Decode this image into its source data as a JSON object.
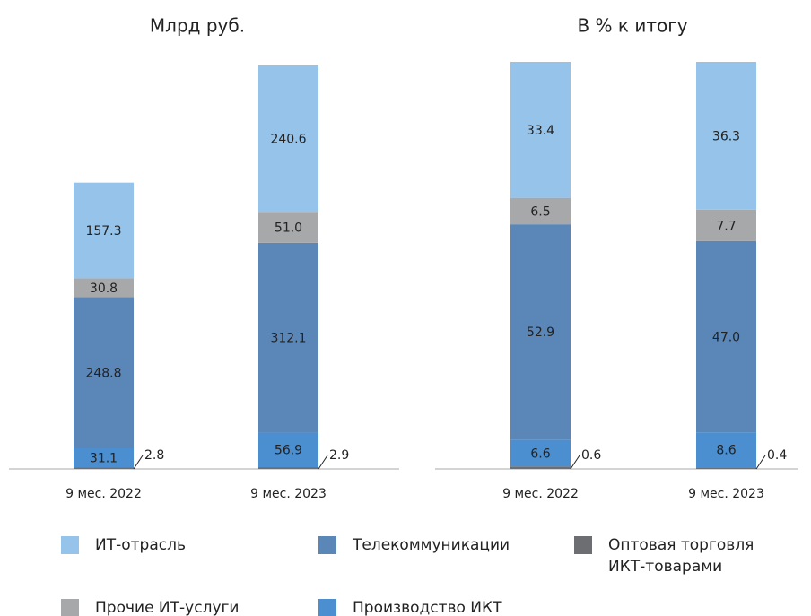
{
  "chart_data": [
    {
      "type": "stacked-bar",
      "title": "Млрд руб.",
      "categories": [
        "9 мес. 2022",
        "9 мес. 2023"
      ],
      "series": [
        {
          "name": "Оптовая торговля ИКТ-товарами",
          "color": "#6d6e71",
          "values": [
            2.8,
            2.9
          ]
        },
        {
          "name": "Производство ИКТ",
          "color": "#4b8fd0",
          "values": [
            31.1,
            56.9
          ]
        },
        {
          "name": "Телекоммуникации",
          "color": "#5b87b8",
          "values": [
            248.8,
            312.1
          ]
        },
        {
          "name": "Прочие ИТ-услуги",
          "color": "#a7a8aa",
          "values": [
            30.8,
            51
          ],
          "value_labels": [
            "30.8",
            "51.0"
          ]
        },
        {
          "name": "ИТ-отрасль",
          "color": "#95c3ea",
          "values": [
            157.3,
            240.6
          ]
        }
      ]
    },
    {
      "type": "stacked-bar",
      "title": "В % к итогу",
      "categories": [
        "9 мес. 2022",
        "9 мес. 2023"
      ],
      "series": [
        {
          "color": "#6d6e71",
          "values": [
            0.6,
            0.4
          ]
        },
        {
          "color": "#4b8fd0",
          "values": [
            6.6,
            8.6
          ]
        },
        {
          "color": "#5b87b8",
          "values": [
            52.9,
            47
          ],
          "value_labels": [
            "52.9",
            "47.0"
          ]
        },
        {
          "color": "#a7a8aa",
          "values": [
            6.5,
            7.7
          ]
        },
        {
          "color": "#95c3ea",
          "values": [
            33.4,
            36.3
          ]
        }
      ]
    }
  ]
}
